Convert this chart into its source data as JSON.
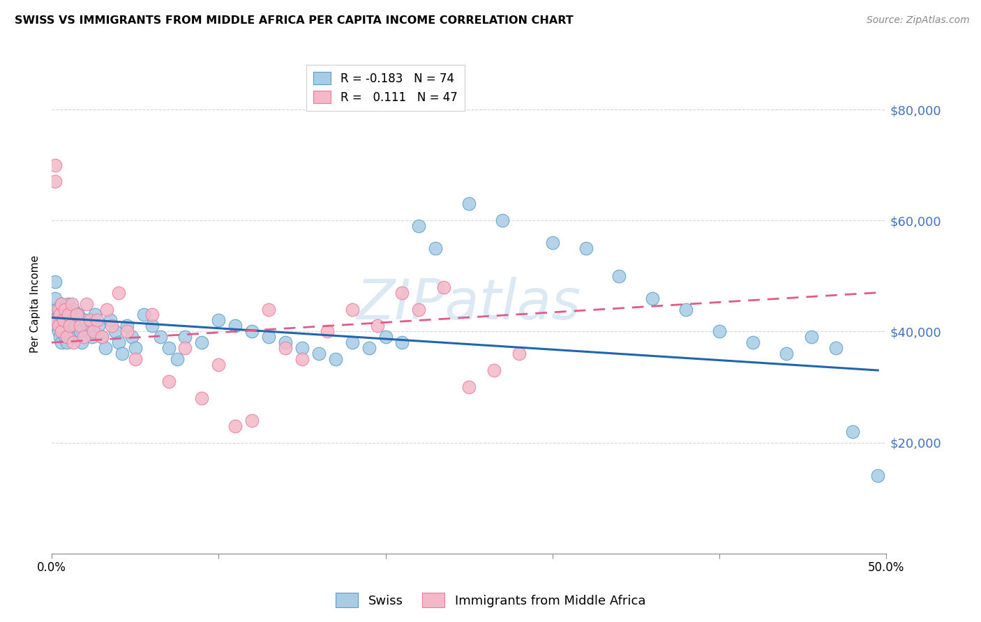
{
  "title": "SWISS VS IMMIGRANTS FROM MIDDLE AFRICA PER CAPITA INCOME CORRELATION CHART",
  "source": "Source: ZipAtlas.com",
  "ylabel": "Per Capita Income",
  "xlim": [
    0.0,
    0.5
  ],
  "ylim": [
    0,
    90000
  ],
  "yticks_right": [
    20000,
    40000,
    60000,
    80000
  ],
  "ytick_labels_right": [
    "$20,000",
    "$40,000",
    "$60,000",
    "$80,000"
  ],
  "legend_blue_label": "R = -0.183   N = 74",
  "legend_pink_label": "R =   0.111   N = 47",
  "legend_bottom_blue": "Swiss",
  "legend_bottom_pink": "Immigrants from Middle Africa",
  "blue_color": "#a8cce4",
  "pink_color": "#f4b8c8",
  "blue_edge_color": "#5a9dc8",
  "pink_edge_color": "#e87ca0",
  "blue_line_color": "#2166ac",
  "pink_line_color": "#e05a8a",
  "watermark": "ZIPatlas",
  "blue_trend_x0": 0.0,
  "blue_trend_y0": 42500,
  "blue_trend_x1": 0.495,
  "blue_trend_y1": 33000,
  "pink_trend_x0": 0.0,
  "pink_trend_y0": 38000,
  "pink_trend_x1": 0.495,
  "pink_trend_y1": 47000,
  "blue_x": [
    0.002,
    0.002,
    0.003,
    0.003,
    0.004,
    0.004,
    0.005,
    0.005,
    0.006,
    0.006,
    0.007,
    0.007,
    0.008,
    0.008,
    0.009,
    0.01,
    0.01,
    0.011,
    0.012,
    0.013,
    0.014,
    0.015,
    0.016,
    0.017,
    0.018,
    0.02,
    0.022,
    0.024,
    0.026,
    0.028,
    0.03,
    0.032,
    0.035,
    0.038,
    0.04,
    0.042,
    0.045,
    0.048,
    0.05,
    0.055,
    0.06,
    0.065,
    0.07,
    0.075,
    0.08,
    0.09,
    0.1,
    0.11,
    0.12,
    0.13,
    0.14,
    0.15,
    0.16,
    0.17,
    0.18,
    0.19,
    0.2,
    0.21,
    0.22,
    0.23,
    0.25,
    0.27,
    0.3,
    0.32,
    0.34,
    0.36,
    0.38,
    0.4,
    0.42,
    0.44,
    0.455,
    0.47,
    0.48,
    0.495
  ],
  "blue_y": [
    49000,
    46000,
    44000,
    41000,
    43000,
    40000,
    42000,
    39000,
    45000,
    38000,
    43000,
    40000,
    42000,
    39000,
    38000,
    45000,
    41000,
    39000,
    42000,
    44000,
    41000,
    39000,
    43000,
    40000,
    38000,
    42000,
    40000,
    39000,
    43000,
    41000,
    39000,
    37000,
    42000,
    40000,
    38000,
    36000,
    41000,
    39000,
    37000,
    43000,
    41000,
    39000,
    37000,
    35000,
    39000,
    38000,
    42000,
    41000,
    40000,
    39000,
    38000,
    37000,
    36000,
    35000,
    38000,
    37000,
    39000,
    38000,
    59000,
    55000,
    63000,
    60000,
    56000,
    55000,
    50000,
    46000,
    44000,
    40000,
    38000,
    36000,
    39000,
    37000,
    22000,
    14000
  ],
  "pink_x": [
    0.002,
    0.002,
    0.003,
    0.004,
    0.004,
    0.005,
    0.006,
    0.006,
    0.007,
    0.008,
    0.009,
    0.01,
    0.011,
    0.012,
    0.013,
    0.015,
    0.017,
    0.019,
    0.021,
    0.023,
    0.025,
    0.027,
    0.03,
    0.033,
    0.036,
    0.04,
    0.045,
    0.05,
    0.06,
    0.07,
    0.08,
    0.09,
    0.1,
    0.11,
    0.12,
    0.13,
    0.14,
    0.15,
    0.165,
    0.18,
    0.195,
    0.21,
    0.22,
    0.235,
    0.25,
    0.265,
    0.28
  ],
  "pink_y": [
    70000,
    67000,
    42000,
    44000,
    41000,
    43000,
    45000,
    40000,
    42000,
    44000,
    39000,
    43000,
    41000,
    45000,
    38000,
    43000,
    41000,
    39000,
    45000,
    42000,
    40000,
    42000,
    39000,
    44000,
    41000,
    47000,
    40000,
    35000,
    43000,
    31000,
    37000,
    28000,
    34000,
    23000,
    24000,
    44000,
    37000,
    35000,
    40000,
    44000,
    41000,
    47000,
    44000,
    48000,
    30000,
    33000,
    36000
  ]
}
